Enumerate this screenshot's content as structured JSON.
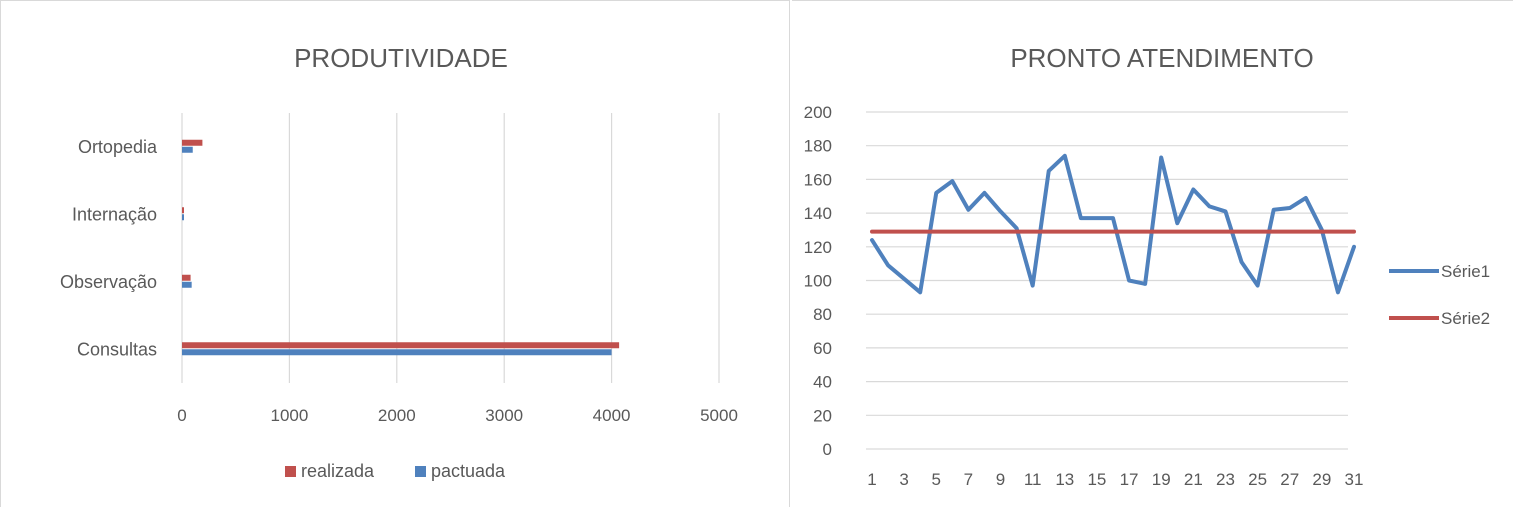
{
  "chart_data": [
    {
      "type": "bar",
      "orientation": "horizontal",
      "title": "PRODUTIVIDADE",
      "categories": [
        "Consultas",
        "Observação",
        "Internação",
        "Ortopedia"
      ],
      "series": [
        {
          "name": "realizada",
          "color": "#C0504D",
          "values": [
            4070,
            80,
            5,
            190
          ]
        },
        {
          "name": "pactuada",
          "color": "#4F81BD",
          "values": [
            4000,
            90,
            5,
            100
          ]
        }
      ],
      "xlim": [
        0,
        5000
      ],
      "xticks": [
        "0",
        "1000",
        "2000",
        "3000",
        "4000",
        "5000"
      ],
      "grid": "vertical",
      "legend_position": "bottom"
    },
    {
      "type": "line",
      "title": "PRONTO ATENDIMENTO",
      "x": [
        1,
        2,
        3,
        4,
        5,
        6,
        7,
        8,
        9,
        10,
        11,
        12,
        13,
        14,
        15,
        16,
        17,
        18,
        19,
        20,
        21,
        22,
        23,
        24,
        25,
        26,
        27,
        28,
        29,
        30,
        31
      ],
      "xticks": [
        "1",
        "3",
        "5",
        "7",
        "9",
        "11",
        "13",
        "15",
        "17",
        "19",
        "21",
        "23",
        "25",
        "27",
        "29",
        "31"
      ],
      "ylim": [
        0,
        200
      ],
      "yticks": [
        "0",
        "20",
        "40",
        "60",
        "80",
        "100",
        "120",
        "140",
        "160",
        "180",
        "200"
      ],
      "series": [
        {
          "name": "Série1",
          "color": "#4F81BD",
          "values": [
            124,
            109,
            101,
            93,
            152,
            159,
            142,
            152,
            141,
            131,
            97,
            165,
            174,
            137,
            137,
            137,
            100,
            98,
            173,
            134,
            154,
            144,
            141,
            111,
            97,
            142,
            143,
            149,
            130,
            93,
            120
          ]
        },
        {
          "name": "Série2",
          "color": "#C0504D",
          "values": [
            129,
            129,
            129,
            129,
            129,
            129,
            129,
            129,
            129,
            129,
            129,
            129,
            129,
            129,
            129,
            129,
            129,
            129,
            129,
            129,
            129,
            129,
            129,
            129,
            129,
            129,
            129,
            129,
            129,
            129,
            129
          ]
        }
      ],
      "grid": "horizontal",
      "legend_position": "right"
    }
  ]
}
